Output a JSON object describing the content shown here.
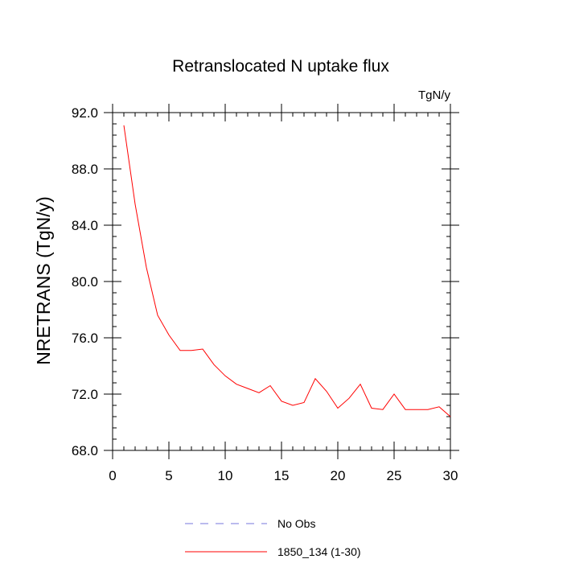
{
  "chart_data": {
    "type": "line",
    "title": "Retranslocated N uptake flux",
    "units": "TgN/y",
    "xlabel": "",
    "ylabel": "NRETRANS  (TgN/y)",
    "xlim": [
      0,
      30
    ],
    "ylim": [
      68,
      92
    ],
    "x_ticks": [
      0,
      5,
      10,
      15,
      20,
      25,
      30
    ],
    "x_tick_labels": [
      "0",
      "5",
      "10",
      "15",
      "20",
      "25",
      "30"
    ],
    "y_ticks": [
      68,
      72,
      76,
      80,
      84,
      88,
      92
    ],
    "y_tick_labels": [
      "68.0",
      "72.0",
      "76.0",
      "80.0",
      "84.0",
      "88.0",
      "92.0"
    ],
    "grid": false,
    "legend_position": "bottom",
    "series": [
      {
        "name": "No Obs",
        "color": "#7777dd",
        "style": "dashed",
        "x": [],
        "y": []
      },
      {
        "name": "1850_134 (1-30)",
        "color": "#ff0000",
        "style": "solid",
        "x": [
          1,
          2,
          3,
          4,
          5,
          6,
          7,
          8,
          9,
          10,
          11,
          12,
          13,
          14,
          15,
          16,
          17,
          18,
          19,
          20,
          21,
          22,
          23,
          24,
          25,
          26,
          27,
          28,
          29,
          30
        ],
        "y": [
          91.1,
          85.5,
          81.0,
          77.6,
          76.2,
          75.1,
          75.1,
          75.2,
          74.1,
          73.3,
          72.7,
          72.4,
          72.1,
          72.6,
          71.5,
          71.2,
          71.4,
          73.1,
          72.2,
          71.0,
          71.7,
          72.7,
          71.0,
          70.9,
          72.0,
          70.9,
          70.9,
          70.9,
          71.1,
          70.4
        ]
      }
    ]
  }
}
